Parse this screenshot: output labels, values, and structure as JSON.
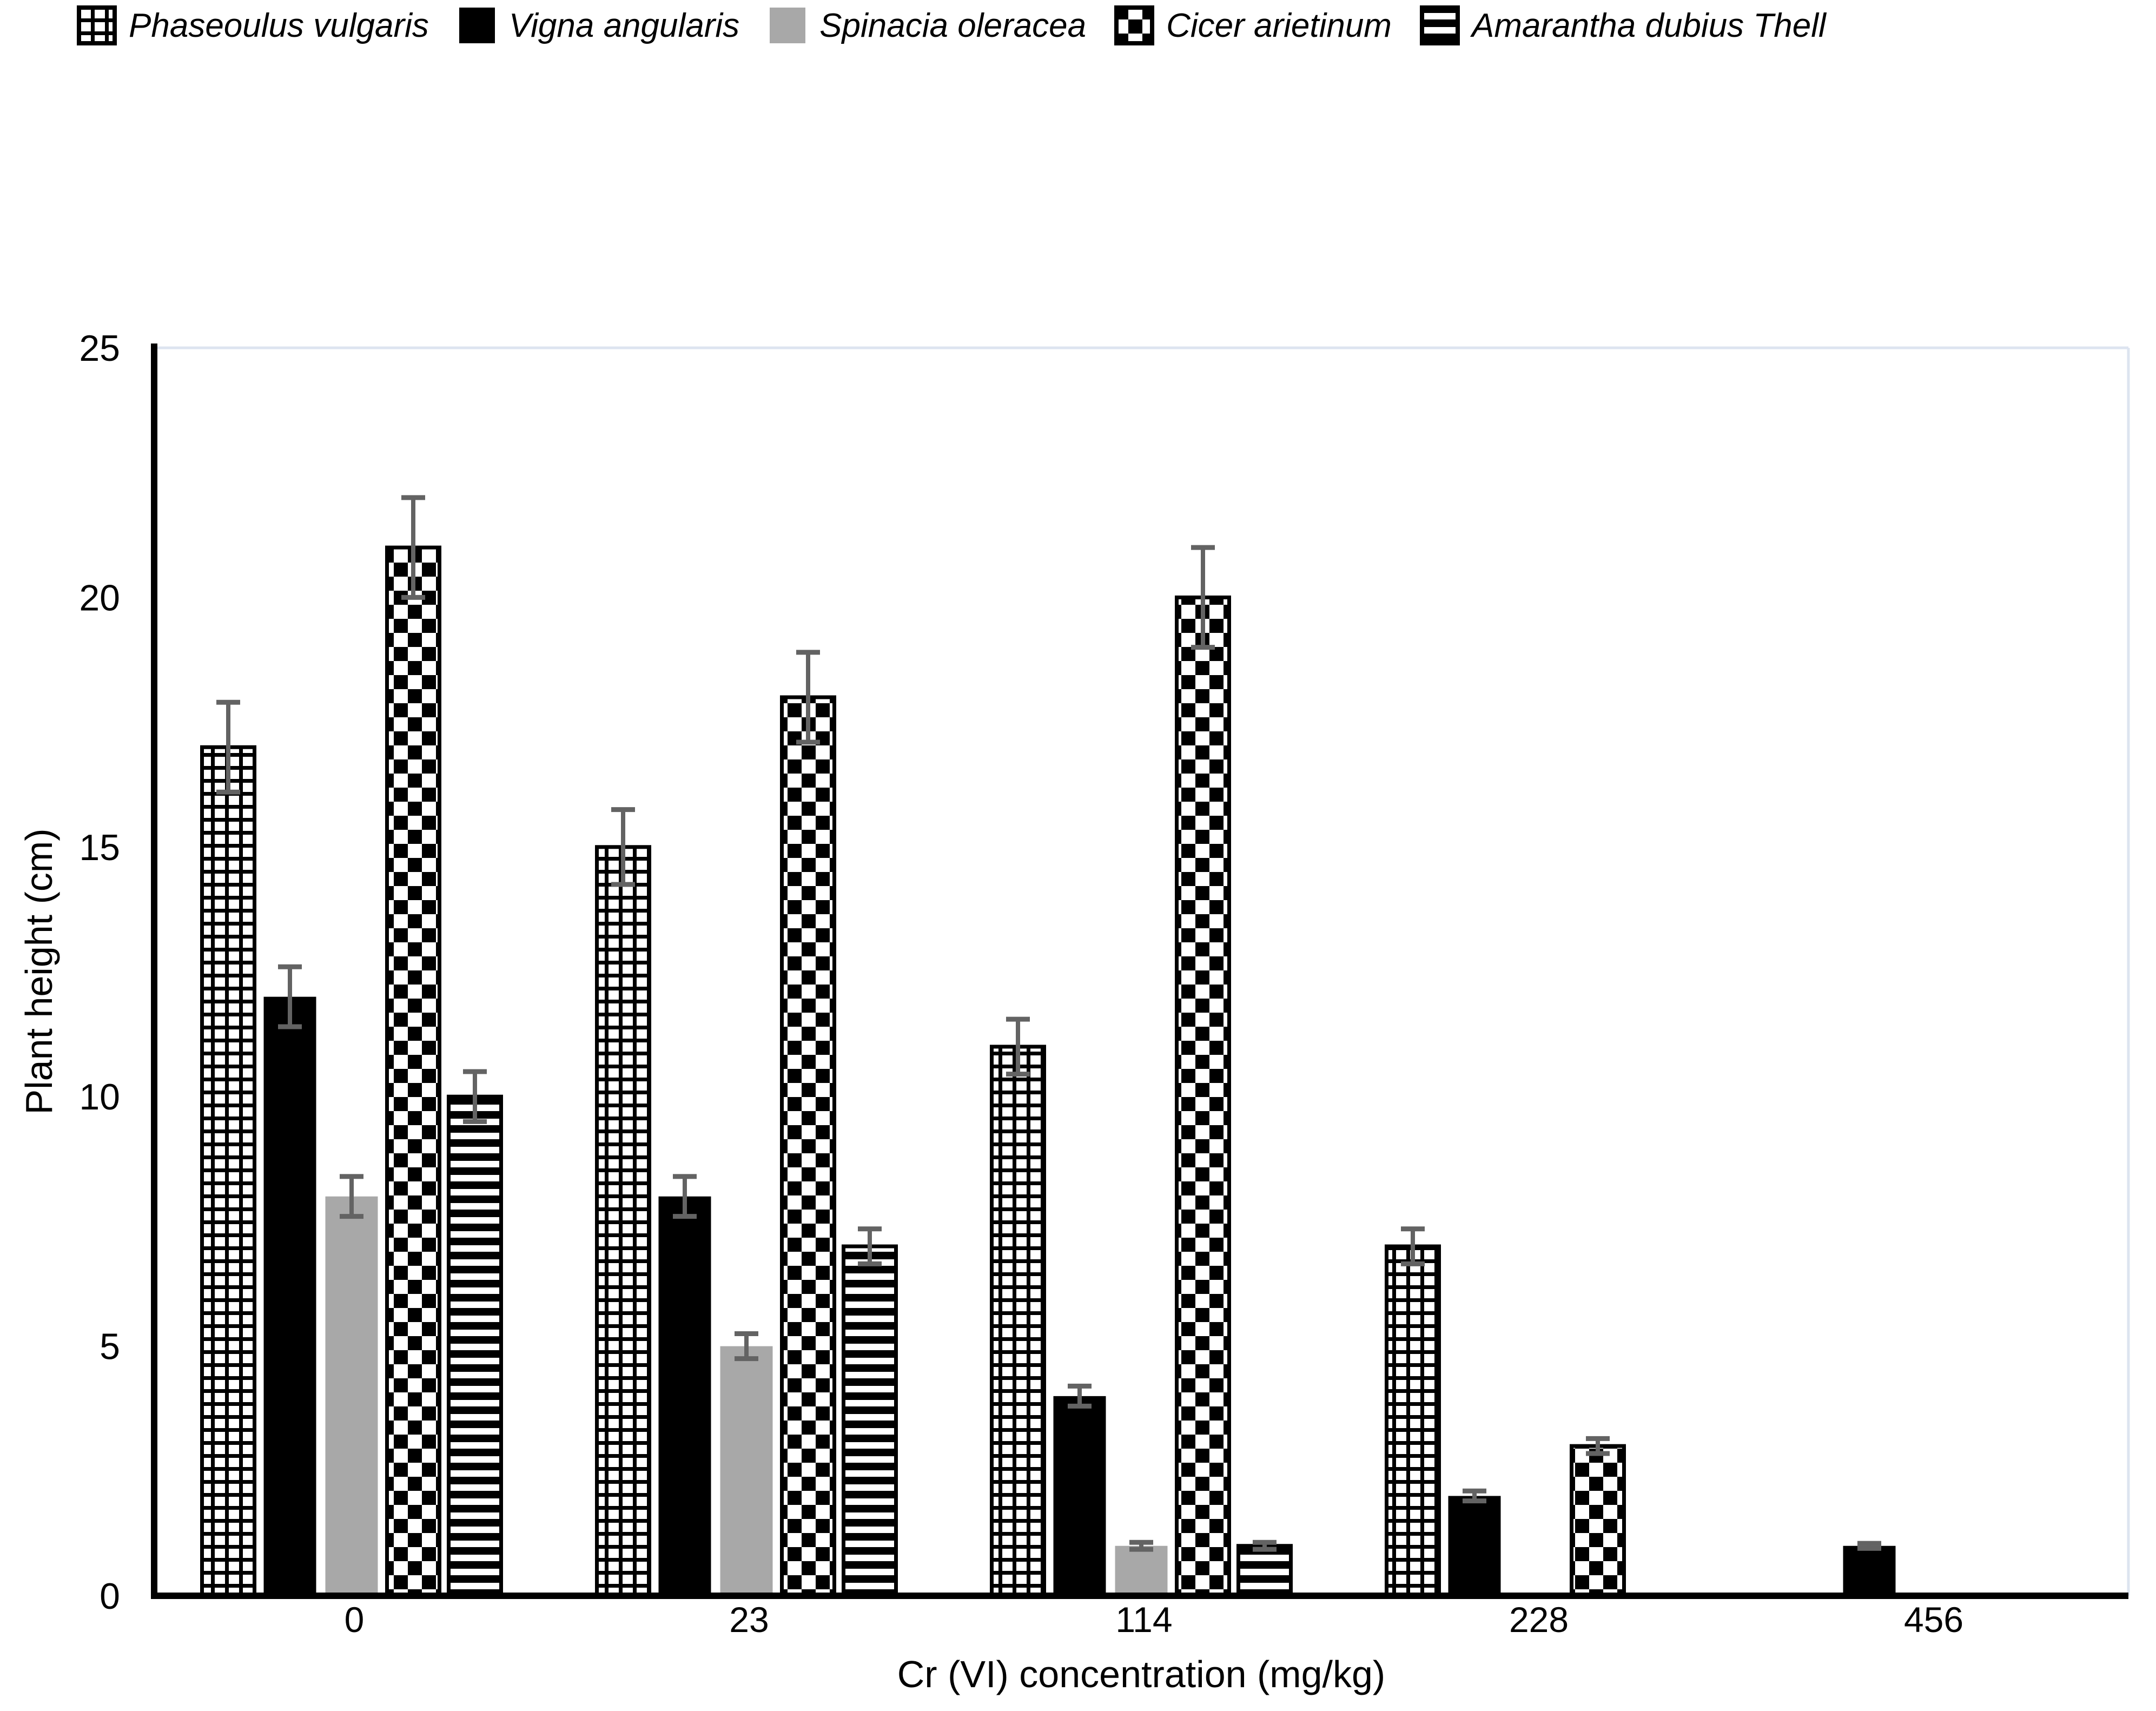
{
  "chart_data": {
    "type": "bar",
    "title": "",
    "xlabel": "Cr (VI) concentration (mg/kg)",
    "ylabel": "Plant height (cm)",
    "categories": [
      "0",
      "23",
      "114",
      "228",
      "456"
    ],
    "yticks": [
      0,
      5,
      10,
      15,
      20,
      25
    ],
    "ylim": [
      0,
      25
    ],
    "grid": "top-border-only",
    "legend_position": "top-left",
    "error_bars": true,
    "series": [
      {
        "name": "Phaseoulus vulgaris",
        "pattern": "grid",
        "values": [
          17,
          15,
          11,
          7,
          0
        ],
        "errors": [
          0.9,
          0.75,
          0.55,
          0.35,
          0
        ]
      },
      {
        "name": "Vigna angularis",
        "pattern": "solid-black",
        "values": [
          12,
          8,
          4,
          2,
          1
        ],
        "errors": [
          0.6,
          0.4,
          0.2,
          0.1,
          0.05
        ]
      },
      {
        "name": "Spinacia oleracea",
        "pattern": "solid-gray",
        "values": [
          8,
          5,
          1,
          0,
          0
        ],
        "errors": [
          0.4,
          0.25,
          0.07,
          0,
          0
        ]
      },
      {
        "name": "Cicer arietinum",
        "pattern": "checker",
        "values": [
          21,
          18,
          20,
          3,
          0
        ],
        "errors": [
          1.0,
          0.9,
          1.0,
          0.15,
          0
        ]
      },
      {
        "name": "Amarantha dubius Thell",
        "pattern": "hstripes",
        "values": [
          10,
          7,
          1,
          0,
          0
        ],
        "errors": [
          0.5,
          0.35,
          0.07,
          0,
          0
        ]
      }
    ],
    "colors": {
      "bar_black": "#000000",
      "bar_gray": "#a8a8a8",
      "error_bar": "#636363",
      "plot_border": "#dde4f0",
      "axis": "#000000",
      "text": "#000000"
    }
  }
}
